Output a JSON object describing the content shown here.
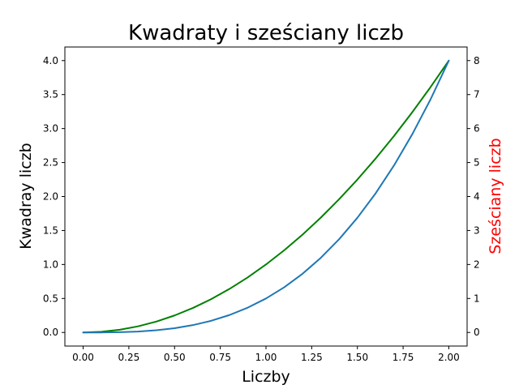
{
  "chart_data": {
    "type": "line",
    "title": "Kwadraty i sześciany liczb",
    "xlabel": "Liczby",
    "ylabel": "Kwadray liczb",
    "y2label": "Sześciany liczb",
    "xlim": [
      -0.1,
      2.1
    ],
    "ylim": [
      -0.2,
      4.2
    ],
    "y2lim": [
      -0.4,
      8.4
    ],
    "xticks": [
      "0.00",
      "0.25",
      "0.50",
      "0.75",
      "1.00",
      "1.25",
      "1.50",
      "1.75",
      "2.00"
    ],
    "yticks": [
      "0.0",
      "0.5",
      "1.0",
      "1.5",
      "2.0",
      "2.5",
      "3.0",
      "3.5",
      "4.0"
    ],
    "y2ticks": [
      "0",
      "1",
      "2",
      "3",
      "4",
      "5",
      "6",
      "7",
      "8"
    ],
    "grid": false,
    "colors": {
      "squares": "#008000",
      "cubes": "#1f77b4",
      "y2label": "#ff0000"
    },
    "series": [
      {
        "axis": "left",
        "color": "#008000",
        "x": [
          0.0,
          0.1,
          0.2,
          0.3,
          0.4,
          0.5,
          0.6,
          0.7,
          0.8,
          0.9,
          1.0,
          1.1,
          1.2,
          1.3,
          1.4,
          1.5,
          1.6,
          1.7,
          1.8,
          1.9,
          2.0
        ],
        "values": [
          0.0,
          0.01,
          0.04,
          0.09,
          0.16,
          0.25,
          0.36,
          0.49,
          0.64,
          0.81,
          1.0,
          1.21,
          1.44,
          1.69,
          1.96,
          2.25,
          2.56,
          2.89,
          3.24,
          3.61,
          4.0
        ]
      },
      {
        "axis": "right",
        "color": "#1f77b4",
        "x": [
          0.0,
          0.1,
          0.2,
          0.3,
          0.4,
          0.5,
          0.6,
          0.7,
          0.8,
          0.9,
          1.0,
          1.1,
          1.2,
          1.3,
          1.4,
          1.5,
          1.6,
          1.7,
          1.8,
          1.9,
          2.0
        ],
        "values": [
          0.0,
          0.001,
          0.008,
          0.027,
          0.064,
          0.125,
          0.216,
          0.343,
          0.512,
          0.729,
          1.0,
          1.331,
          1.728,
          2.197,
          2.744,
          3.375,
          4.096,
          4.913,
          5.832,
          6.859,
          8.0
        ]
      }
    ]
  }
}
